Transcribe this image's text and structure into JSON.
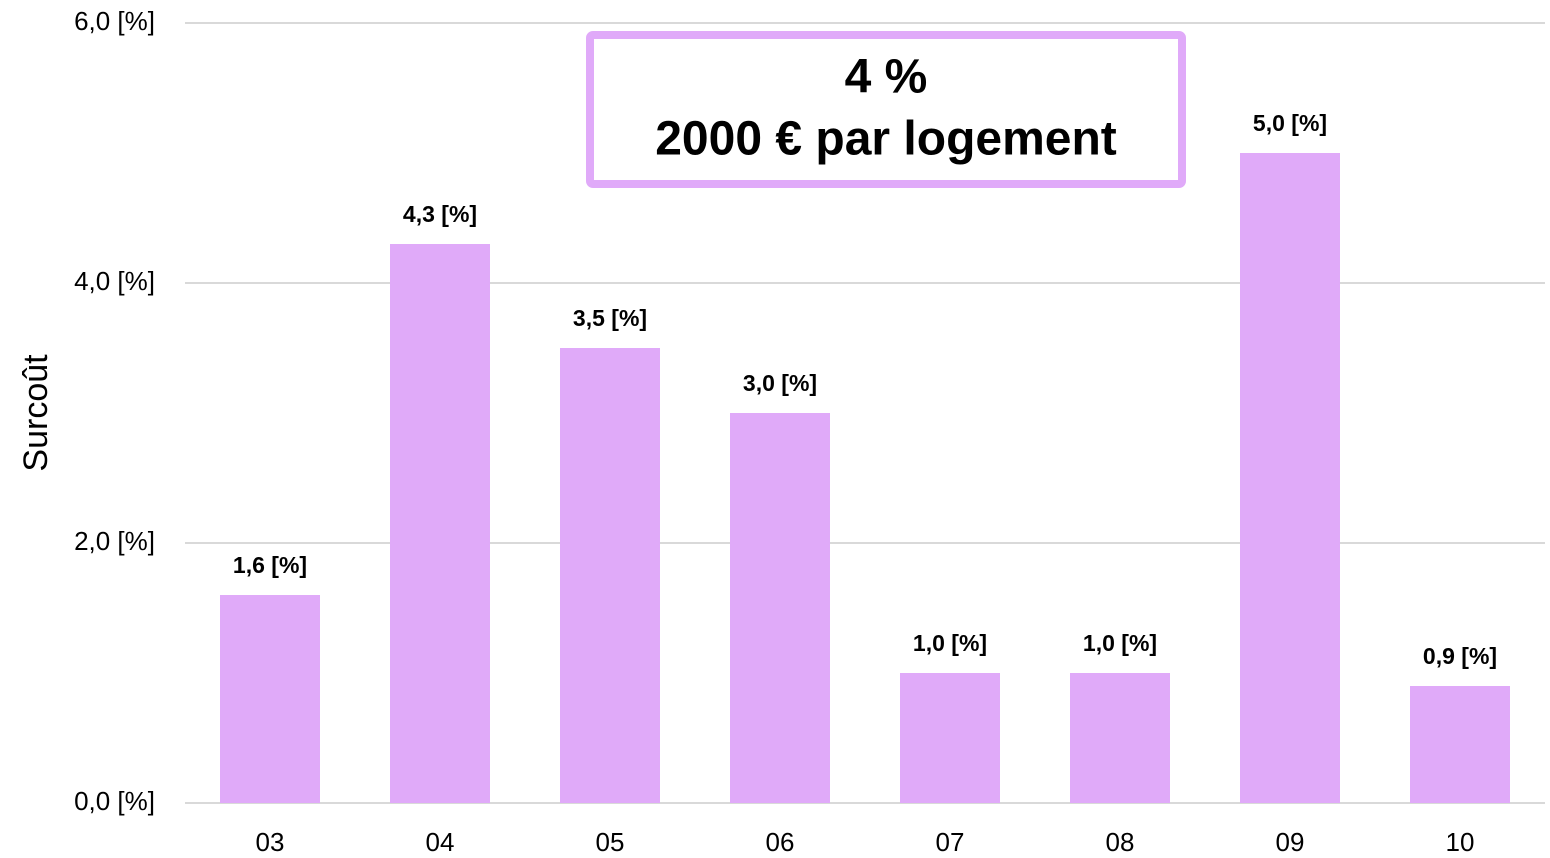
{
  "chart_data": {
    "type": "bar",
    "y_axis_label": "Surcoût",
    "annotations": [
      "4 %",
      "2000 € par logement"
    ],
    "categories": [
      "03",
      "04",
      "05",
      "06",
      "07",
      "08",
      "09",
      "10"
    ],
    "values": [
      1.6,
      4.3,
      3.5,
      3.0,
      1.0,
      1.0,
      5.0,
      0.9
    ],
    "value_labels": [
      "1,6 [%]",
      "4,3 [%]",
      "3,5 [%]",
      "3,0 [%]",
      "1,0 [%]",
      "1,0 [%]",
      "5,0 [%]",
      "0,9 [%]"
    ],
    "color": "#e0aaf9",
    "ylim": [
      0,
      6
    ],
    "yticks": [
      {
        "value": 0,
        "label": "0,0 [%]"
      },
      {
        "value": 2,
        "label": "2,0 [%]"
      },
      {
        "value": 4,
        "label": "4,0 [%]"
      },
      {
        "value": 6,
        "label": "6,0 [%]"
      }
    ],
    "grid": true
  }
}
